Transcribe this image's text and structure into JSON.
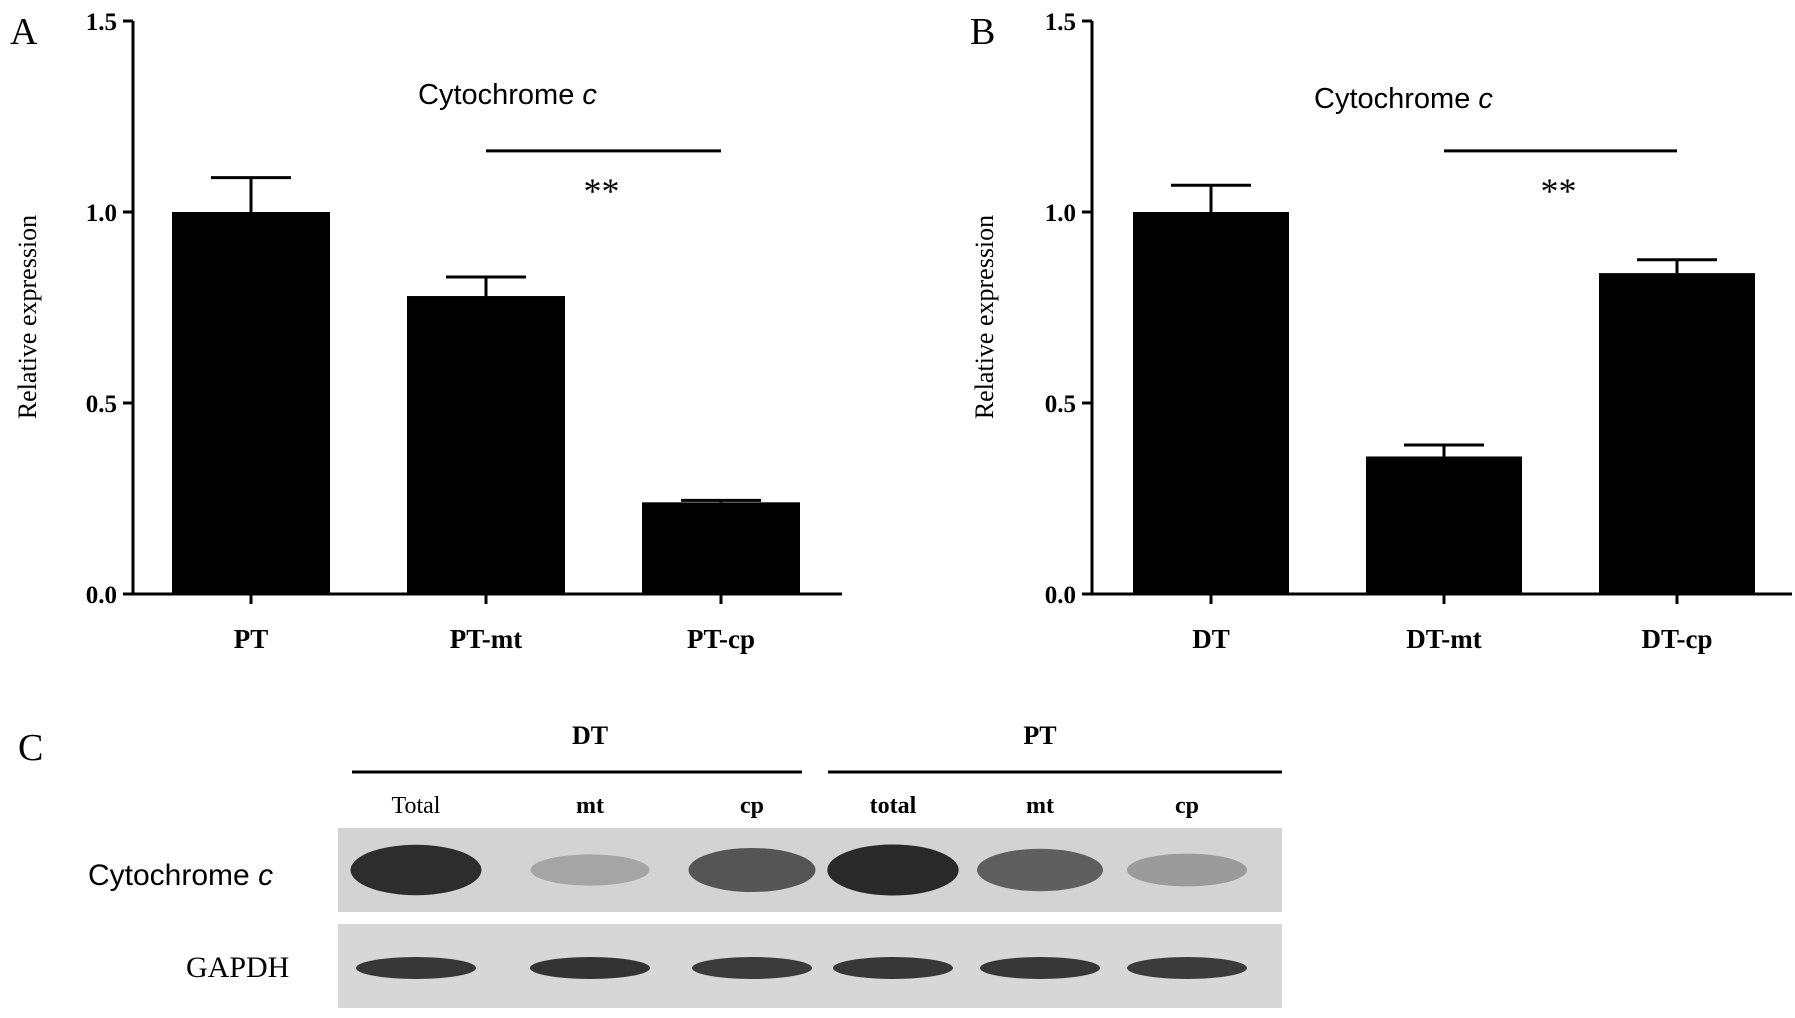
{
  "panels": {
    "A": {
      "letter": "A"
    },
    "B": {
      "letter": "B"
    },
    "C": {
      "letter": "C"
    }
  },
  "chart_data": [
    {
      "panel": "A",
      "type": "bar",
      "title": "Cytochrome c",
      "title_main": "Cytochrome ",
      "title_italic": "c",
      "ylabel": "Relative expression",
      "xlabel": "",
      "ylim": [
        0,
        1.5
      ],
      "yticks": [
        0.0,
        0.5,
        1.0,
        1.5
      ],
      "ytick_labels": [
        "0.0",
        "0.5",
        "1.0",
        "1.5"
      ],
      "categories": [
        "PT",
        "PT-mt",
        "PT-cp"
      ],
      "values": [
        1.0,
        0.78,
        0.24
      ],
      "errors": [
        0.09,
        0.05,
        0.005
      ],
      "significance": {
        "from": 1,
        "to": 2,
        "label": "**",
        "y": 1.16
      },
      "bar_color": "#000000",
      "grid": false
    },
    {
      "panel": "B",
      "type": "bar",
      "title": "Cytochrome c",
      "title_main": "Cytochrome ",
      "title_italic": "c",
      "ylabel": "Relative expression",
      "xlabel": "",
      "ylim": [
        0,
        1.5
      ],
      "yticks": [
        0.0,
        0.5,
        1.0,
        1.5
      ],
      "ytick_labels": [
        "0.0",
        "0.5",
        "1.0",
        "1.5"
      ],
      "categories": [
        "DT",
        "DT-mt",
        "DT-cp"
      ],
      "values": [
        1.0,
        0.36,
        0.84
      ],
      "errors": [
        0.07,
        0.03,
        0.035
      ],
      "significance": {
        "from": 1,
        "to": 2,
        "label": "**",
        "y": 1.16
      },
      "bar_color": "#000000",
      "grid": false
    }
  ],
  "blot": {
    "group_labels": [
      "DT",
      "PT"
    ],
    "lane_labels": [
      "Total",
      "mt",
      "cp",
      "total",
      "mt",
      "cp"
    ],
    "rows": [
      {
        "label_main": "Cytochrome ",
        "label_italic": "c",
        "intensities": [
          0.95,
          0.35,
          0.75,
          0.97,
          0.7,
          0.4
        ]
      },
      {
        "label_main": "GAPDH",
        "label_italic": "",
        "intensities": [
          0.9,
          0.92,
          0.88,
          0.9,
          0.9,
          0.88
        ]
      }
    ]
  }
}
